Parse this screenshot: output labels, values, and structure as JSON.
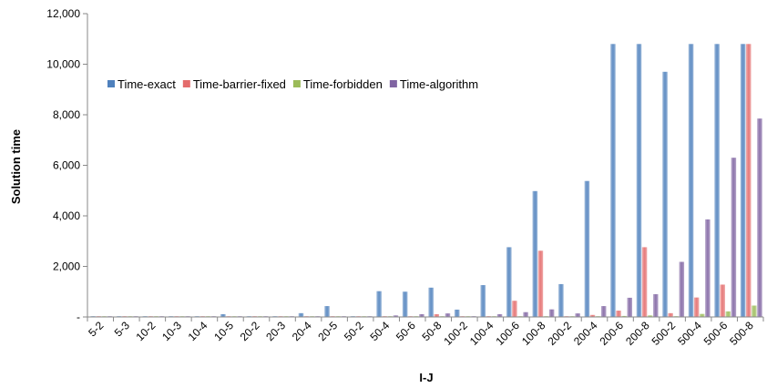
{
  "chart_data": {
    "type": "bar",
    "title": "",
    "xlabel": "I-J",
    "ylabel": "Solution time",
    "ylim": [
      0,
      12000
    ],
    "yticks": [
      0,
      2000,
      4000,
      6000,
      8000,
      10000,
      12000
    ],
    "ytick_labels": [
      "-",
      "2,000",
      "4,000",
      "6,000",
      "8,000",
      "10,000",
      "12,000"
    ],
    "grid": false,
    "legend_position": "upper-left-inside",
    "categories": [
      "5-2",
      "5-3",
      "10-2",
      "10-3",
      "10-4",
      "10-5",
      "20-2",
      "20-3",
      "20-4",
      "20-5",
      "50-2",
      "50-4",
      "50-6",
      "50-8",
      "100-2",
      "100-4",
      "100-6",
      "100-8",
      "200-2",
      "200-4",
      "200-6",
      "200-8",
      "500-2",
      "500-4",
      "500-6",
      "500-8"
    ],
    "series": [
      {
        "name": "Time-exact",
        "color": "#4F81BD",
        "values": [
          2,
          3,
          3,
          4,
          6,
          110,
          8,
          12,
          150,
          430,
          15,
          1020,
          1000,
          1160,
          290,
          1260,
          2760,
          4980,
          1300,
          5380,
          10800,
          10800,
          9700,
          10800,
          10800,
          10800
        ]
      },
      {
        "name": "Time-barrier-fixed",
        "color": "#E46C6C",
        "values": [
          1,
          1,
          1,
          1,
          1,
          2,
          1,
          2,
          3,
          5,
          3,
          6,
          10,
          110,
          10,
          30,
          640,
          2620,
          20,
          80,
          250,
          2760,
          150,
          770,
          1280,
          10800
        ]
      },
      {
        "name": "Time-forbidden",
        "color": "#9BBB59",
        "values": [
          0,
          0,
          0,
          0,
          0,
          1,
          0,
          0,
          1,
          2,
          1,
          3,
          4,
          12,
          3,
          5,
          10,
          20,
          5,
          10,
          40,
          60,
          30,
          120,
          220,
          450
        ]
      },
      {
        "name": "Time-algorithm",
        "color": "#8064A2",
        "values": [
          1,
          1,
          1,
          1,
          2,
          6,
          2,
          3,
          8,
          15,
          5,
          60,
          110,
          140,
          30,
          110,
          190,
          300,
          140,
          430,
          760,
          900,
          2180,
          3860,
          6300,
          7850
        ]
      }
    ]
  }
}
